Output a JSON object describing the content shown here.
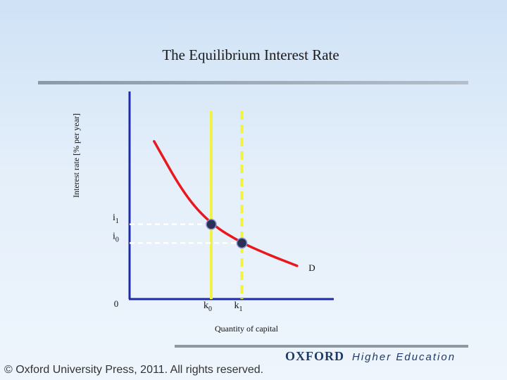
{
  "slide": {
    "title": "The Equilibrium Interest Rate",
    "brand_name": "OXFORD",
    "brand_tagline": "Higher Education",
    "copyright": "© Oxford University Press, 2011. All rights reserved."
  },
  "chart_data": {
    "type": "line",
    "title": "The Equilibrium Interest Rate",
    "xlabel": "Quantity of capital",
    "ylabel": "Interest rate [% per year]",
    "origin_label": "0",
    "curve_label": "D",
    "xlim": [
      0,
      10
    ],
    "ylim": [
      0,
      10
    ],
    "demand_curve": {
      "name": "D",
      "color": "#e8181e",
      "x": [
        1.2,
        2.7,
        4.0,
        5.5,
        6.9,
        8.2
      ],
      "y": [
        7.6,
        5.0,
        3.6,
        2.7,
        2.1,
        1.6
      ]
    },
    "points": [
      {
        "x_label": "k",
        "x_sub": "0",
        "y_label": "i",
        "y_sub": "1",
        "x": 4.0,
        "y": 3.6
      },
      {
        "x_label": "k",
        "x_sub": "1",
        "y_label": "i",
        "y_sub": "0",
        "x": 5.5,
        "y": 2.7
      }
    ],
    "supply_lines": [
      {
        "x": 4.0,
        "style": "solid",
        "color": "#f2f245"
      },
      {
        "x": 5.5,
        "style": "dashed",
        "color": "#f2f245"
      }
    ],
    "grid": false
  }
}
